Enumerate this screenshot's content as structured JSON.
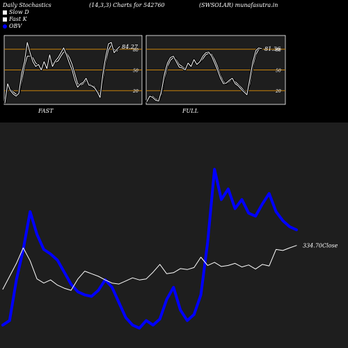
{
  "header": {
    "left": "Daily Stochastics",
    "center": "(14,3,3) Charts for 542760",
    "right": "(SWSOLAR) munafasutra.in"
  },
  "legend": [
    {
      "label": "Slow  D",
      "color": "#ffffff",
      "icon": "square-swatch-icon"
    },
    {
      "label": "Fast K",
      "color": "#ffffff",
      "icon": "square-swatch-icon"
    },
    {
      "label": "OBV",
      "color": "#0000ff",
      "icon": "circle-swatch-icon"
    }
  ],
  "colors": {
    "background": "#000000",
    "panel": "#1e1e1e",
    "band": "#c8820a",
    "obv": "#0000ff",
    "price": "#ffffff"
  },
  "chart_data": [
    {
      "type": "line",
      "panel": "FAST",
      "ylim": [
        0,
        100
      ],
      "gridlines": [
        20,
        50,
        80
      ],
      "gridline_labels": [
        "20",
        "50",
        "80"
      ],
      "last_value_label": "84.27",
      "x": [
        1,
        2,
        3,
        4,
        5,
        6,
        7,
        8,
        9,
        10,
        11,
        12,
        13,
        14,
        15,
        16,
        17,
        18,
        19,
        20,
        21,
        22,
        23,
        24,
        25,
        26,
        27,
        28,
        29,
        30,
        31,
        32,
        33,
        34,
        35,
        36,
        37,
        38,
        39,
        40,
        41,
        42
      ],
      "series": [
        {
          "key": "slow_d",
          "values": [
            3,
            25,
            22,
            18,
            15,
            14,
            34,
            55,
            70,
            70,
            68,
            60,
            57,
            53,
            58,
            56,
            66,
            60,
            61,
            63,
            70,
            76,
            75,
            68,
            58,
            44,
            30,
            28,
            30,
            35,
            30,
            28,
            26,
            20,
            14,
            36,
            62,
            79,
            86,
            80,
            77,
            84
          ]
        },
        {
          "key": "fast_k",
          "values": [
            2,
            30,
            20,
            15,
            12,
            16,
            45,
            62,
            90,
            75,
            62,
            55,
            58,
            50,
            62,
            52,
            72,
            55,
            63,
            68,
            75,
            82,
            72,
            60,
            50,
            35,
            25,
            30,
            32,
            38,
            28,
            27,
            24,
            18,
            10,
            45,
            70,
            88,
            90,
            75,
            80,
            84
          ]
        }
      ]
    },
    {
      "type": "line",
      "panel": "FULL",
      "ylim": [
        0,
        100
      ],
      "gridlines": [
        20,
        50,
        80
      ],
      "gridline_labels": [
        "20",
        "50",
        "80"
      ],
      "last_value_label": "81.36",
      "x": [
        1,
        2,
        3,
        4,
        5,
        6,
        7,
        8,
        9,
        10,
        11,
        12,
        13,
        14,
        15,
        16,
        17,
        18,
        19,
        20,
        21,
        22,
        23,
        24,
        25,
        26,
        27,
        28,
        29,
        30,
        31,
        32,
        33,
        34,
        35,
        36,
        37,
        38,
        39,
        40
      ],
      "series": [
        {
          "key": "slow_d",
          "values": [
            5,
            10,
            12,
            8,
            6,
            15,
            38,
            55,
            64,
            68,
            65,
            58,
            55,
            52,
            58,
            57,
            62,
            60,
            61,
            66,
            72,
            74,
            73,
            65,
            55,
            42,
            33,
            30,
            33,
            37,
            33,
            29,
            25,
            20,
            16,
            30,
            55,
            72,
            80,
            81
          ]
        },
        {
          "key": "fast_k",
          "values": [
            4,
            12,
            10,
            6,
            5,
            20,
            45,
            60,
            68,
            70,
            62,
            54,
            53,
            50,
            60,
            55,
            65,
            58,
            62,
            70,
            75,
            76,
            70,
            60,
            50,
            38,
            30,
            31,
            35,
            38,
            30,
            27,
            22,
            18,
            14,
            38,
            62,
            78,
            82,
            81
          ]
        }
      ]
    },
    {
      "type": "line",
      "panel": "OBV and price",
      "price_label": "334.70",
      "price_label_suffix": "Close",
      "x": [
        1,
        2,
        3,
        4,
        5,
        6,
        7,
        8,
        9,
        10,
        11,
        12,
        13,
        14,
        15,
        16,
        17,
        18,
        19,
        20,
        21,
        22,
        23,
        24,
        25,
        26,
        27,
        28,
        29,
        30,
        31,
        32,
        33,
        34,
        35,
        36,
        37,
        38,
        39,
        40,
        41,
        42,
        43,
        44
      ],
      "series": [
        {
          "key": "obv",
          "values": [
            5,
            8,
            35,
            55,
            80,
            65,
            55,
            52,
            48,
            40,
            32,
            27,
            25,
            24,
            28,
            35,
            30,
            20,
            10,
            5,
            3,
            8,
            5,
            9,
            22,
            30,
            15,
            8,
            12,
            25,
            60,
            108,
            88,
            95,
            82,
            88,
            79,
            77,
            85,
            92,
            80,
            74,
            70,
            68
          ]
        },
        {
          "key": "close",
          "values": [
            250,
            275,
            300,
            330,
            305,
            270,
            262,
            268,
            258,
            252,
            248,
            270,
            285,
            280,
            275,
            268,
            262,
            260,
            266,
            272,
            268,
            270,
            283,
            298,
            280,
            282,
            290,
            288,
            292,
            312,
            296,
            302,
            294,
            296,
            300,
            293,
            297,
            289,
            298,
            295,
            327,
            325,
            330,
            334.7
          ]
        }
      ]
    }
  ]
}
